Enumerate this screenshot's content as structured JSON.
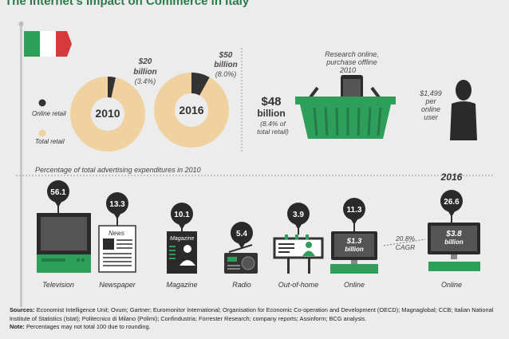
{
  "title": "The Internet’s Impact on Commerce in Italy",
  "legend": {
    "online": "Online retail",
    "total": "Total retail"
  },
  "donuts": [
    {
      "year": "2010",
      "value_line1": "$20",
      "value_line2": "billion",
      "value_line3": "(3.4%)"
    },
    {
      "year": "2016",
      "value_line1": "$50",
      "value_line2": "billion",
      "value_line3": "(8.0%)"
    }
  ],
  "research": {
    "line1": "Research online,",
    "line2": "purchase offline",
    "line3": "2010"
  },
  "basket": {
    "value": "$48",
    "unit": "billion",
    "note1": "(8.4% of",
    "note2": "total retail)"
  },
  "user": {
    "value": "$1,499",
    "line2": "per",
    "line3": "online",
    "line4": "user"
  },
  "ad_title": "Percentage of total advertising expenditures in 2010",
  "year_2016": "2016",
  "cagr": {
    "value": "20.8%",
    "label": "CAGR"
  },
  "online_2010_value": "$1.3",
  "online_2016_value": "$3.8",
  "billion_label": "billion",
  "news_label": "News",
  "magazine_label": "Magazine",
  "chart_data": {
    "type": "bar",
    "title": "Percentage of total advertising expenditures in 2010",
    "categories": [
      "Television",
      "Newspaper",
      "Magazine",
      "Radio",
      "Out-of-home",
      "Online",
      "Online"
    ],
    "values": [
      56.1,
      13.3,
      10.1,
      5.4,
      3.9,
      11.3,
      26.6
    ],
    "years": [
      "2010",
      "2010",
      "2010",
      "2010",
      "2010",
      "2010",
      "2016"
    ],
    "online_spend": {
      "2010": "$1.3 billion",
      "2016": "$3.8 billion"
    },
    "online_retail_share": [
      {
        "year": "2010",
        "online_retail": "$20 billion",
        "share": 3.4
      },
      {
        "year": "2016",
        "online_retail": "$50 billion",
        "share": 8.0
      }
    ]
  },
  "sources_label": "Sources:",
  "sources_text": "Economist Intelligence Unit; Ovum; Gartner; Euromonitor International; Organisation for Economic Co-operation and Development (OECD); Magnaglobal; CCB; Italian National Institute of Statistics (Istat); Politecnico di Milano (Polimi); Confindustria; Forrester Research; company reports; Assinform; BCG analysis.",
  "note_label": "Note:",
  "note_text": "Percentages may not total 100 due to rounding.",
  "colors": {
    "green": "#2e9e5b",
    "donut": "#f0d2a0",
    "online": "#333333",
    "divider": "#999999"
  }
}
